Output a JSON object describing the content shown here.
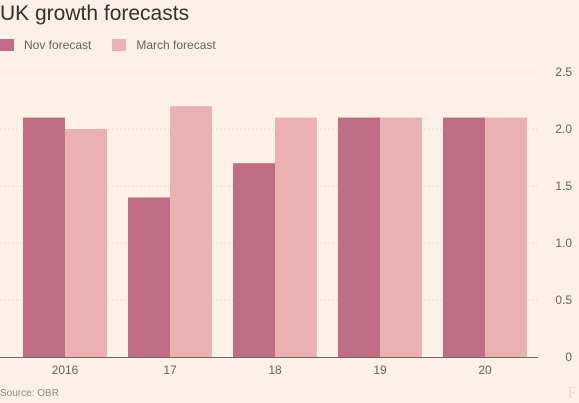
{
  "page": {
    "title": "UK growth forecasts",
    "source": "Source: OBR",
    "brand_mark": "FT"
  },
  "colors": {
    "background": "#FDF1E6",
    "nov": "#C06C84",
    "march": "#EBB0B0",
    "grid": "#E0D3C8",
    "axis": "#6E6864"
  },
  "chart_data": {
    "type": "bar",
    "title": "UK growth forecasts",
    "categories": [
      "2016",
      "17",
      "18",
      "19",
      "20"
    ],
    "series": [
      {
        "name": "Nov forecast",
        "values": [
          2.1,
          1.4,
          1.7,
          2.1,
          2.1
        ]
      },
      {
        "name": "March forecast",
        "values": [
          2.0,
          2.2,
          2.1,
          2.1,
          2.1
        ]
      }
    ],
    "ylim": [
      0,
      2.5
    ],
    "yticks": [
      "0",
      "0.5",
      "1.0",
      "1.5",
      "2.0",
      "2.5"
    ],
    "y_axis_side": "right",
    "grid": true,
    "legend": "top-left"
  }
}
